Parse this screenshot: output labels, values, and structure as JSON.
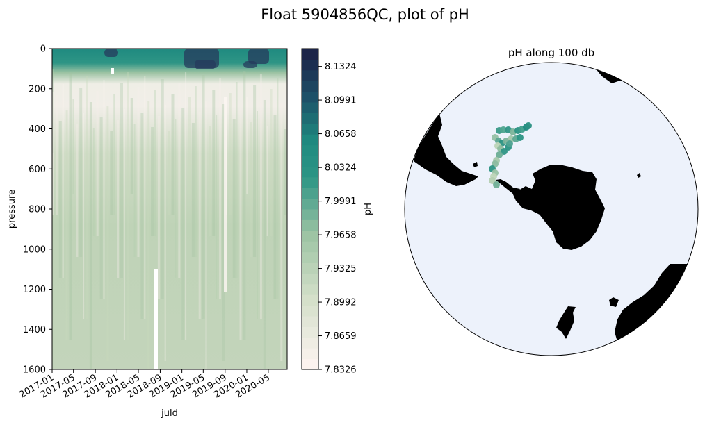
{
  "figure": {
    "title": "Float 5904856QC, plot of pH"
  },
  "chart_data": [
    {
      "type": "heatmap",
      "title": "",
      "xlabel": "juld",
      "ylabel": "pressure",
      "x_ticks": [
        "2017-01",
        "2017-05",
        "2017-09",
        "2018-01",
        "2018-05",
        "2018-09",
        "2019-01",
        "2019-05",
        "2019-09",
        "2020-01",
        "2020-05"
      ],
      "xlim": [
        "2017-01-01",
        "2020-08-15"
      ],
      "y_ticks": [
        0,
        200,
        400,
        600,
        800,
        1000,
        1200,
        1400,
        1600
      ],
      "ylim": [
        1600,
        0
      ],
      "y_inverted": true,
      "colorbar": {
        "label": "pH",
        "min": 7.8326,
        "max": 8.15,
        "tick_labels": [
          "8.1324",
          "8.0991",
          "8.0658",
          "8.0324",
          "7.9991",
          "7.9658",
          "7.9325",
          "7.8992",
          "7.8659",
          "7.8326"
        ],
        "tick_values": [
          8.1324,
          8.0991,
          8.0658,
          8.0324,
          7.9991,
          7.9658,
          7.9325,
          7.8992,
          7.8659,
          7.8326
        ],
        "colormap_low": "#fcf3ef",
        "colormap_mid": "#9cc3a3",
        "colormap_teal": "#1f8a80",
        "colormap_high": "#1c2448"
      },
      "series": [
        {
          "pressure": 0,
          "ph": 8.03
        },
        {
          "pressure": 50,
          "ph": 8.0
        },
        {
          "pressure": 100,
          "ph": 7.96
        },
        {
          "pressure": 150,
          "ph": 7.9
        },
        {
          "pressure": 250,
          "ph": 7.86
        },
        {
          "pressure": 400,
          "ph": 7.88
        },
        {
          "pressure": 600,
          "ph": 7.91
        },
        {
          "pressure": 1000,
          "ph": 7.92
        },
        {
          "pressure": 1600,
          "ph": 7.91
        }
      ],
      "gap_note": "white gap near 2018-09 below 1100 db"
    },
    {
      "type": "map",
      "title": "pH along 100 db",
      "projection": "south polar stereographic",
      "ocean_color": "#edf2fb",
      "land_color": "#000000",
      "track_color_range": [
        "#a9c9ab",
        "#1f8a80"
      ]
    }
  ]
}
